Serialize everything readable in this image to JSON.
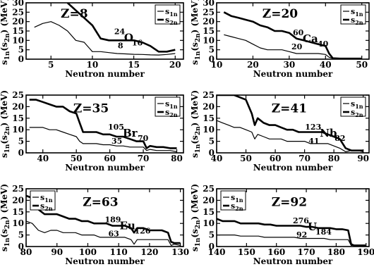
{
  "chart_data": [
    {
      "type": "line",
      "z_label": "Z=8",
      "nucleus": {
        "mass": "24",
        "symbol": "O",
        "z": "8",
        "n": "16"
      },
      "xlabel": "Neutron number",
      "ylabel_parts": [
        "s",
        "1n",
        "(s",
        "2n",
        ") (MeV)"
      ],
      "xlim": [
        2,
        21
      ],
      "ylim": [
        0,
        30
      ],
      "xticks": [
        5,
        10,
        15,
        20
      ],
      "yticks": [
        0,
        5,
        10,
        15,
        20,
        25,
        30
      ],
      "legend": {
        "placement": "top-right",
        "entries": [
          {
            "sub": "1n"
          },
          {
            "sub": "2n"
          }
        ]
      },
      "series": [
        {
          "key": "s1n",
          "x": [
            3,
            4,
            5,
            6,
            7,
            8,
            9,
            10,
            11,
            12,
            13,
            14,
            15,
            16,
            17,
            18,
            19,
            20
          ],
          "y": [
            17,
            19,
            20,
            18,
            15,
            10,
            9,
            4,
            4,
            3.5,
            3,
            2.8,
            2.6,
            2.5,
            2.3,
            2.2,
            2.5,
            3
          ]
        },
        {
          "key": "s2n",
          "x": [
            7,
            8,
            9,
            10,
            11,
            12,
            13,
            14,
            15,
            16,
            17,
            18,
            19,
            20
          ],
          "y": [
            30,
            26,
            22,
            18,
            11,
            10,
            10,
            10,
            10,
            9,
            7,
            4,
            4,
            5
          ]
        }
      ]
    },
    {
      "type": "line",
      "z_label": "Z=20",
      "nucleus": {
        "mass": "60",
        "symbol": "Ca",
        "z": "20",
        "n": "40"
      },
      "xlabel": "Neutron number",
      "ylabel_parts": [
        "s",
        "1n",
        "(s",
        "2n",
        ") (MeV)"
      ],
      "xlim": [
        10,
        52
      ],
      "ylim": [
        0,
        30
      ],
      "xticks": [
        10,
        20,
        30,
        40,
        50
      ],
      "yticks": [
        0,
        5,
        10,
        15,
        20,
        25,
        30
      ],
      "legend": {
        "placement": "top-right",
        "entries": [
          {
            "sub": "1n"
          },
          {
            "sub": "2n"
          }
        ]
      },
      "series": [
        {
          "key": "s1n",
          "x": [
            12,
            14,
            16,
            18,
            20,
            22,
            24,
            26,
            28,
            30,
            32,
            34,
            36,
            38,
            40,
            41,
            42,
            44,
            46,
            48,
            50
          ],
          "y": [
            13,
            12,
            11,
            10,
            8,
            6,
            5,
            5,
            5,
            4,
            3,
            3,
            3,
            3,
            2.5,
            1,
            0.5,
            0.3,
            0.3,
            0.3,
            0.3
          ]
        },
        {
          "key": "s2n",
          "x": [
            12,
            14,
            16,
            18,
            20,
            22,
            24,
            26,
            28,
            30,
            32,
            34,
            36,
            38,
            40,
            41,
            42,
            44,
            46,
            48,
            50
          ],
          "y": [
            25,
            23,
            22,
            21,
            20,
            18,
            17,
            15,
            15,
            14,
            11,
            10,
            9,
            8,
            7,
            3,
            0.5,
            0.3,
            0.3,
            0.3,
            0.3
          ]
        }
      ]
    },
    {
      "type": "line",
      "z_label": "Z=35",
      "nucleus": {
        "mass": "105",
        "symbol": "Br",
        "z": "35",
        "n": "70"
      },
      "xlabel": "Neutron number",
      "ylabel_parts": [
        "s",
        "1n",
        "(s",
        "2n",
        ") (MeV)"
      ],
      "xlim": [
        35,
        82
      ],
      "ylim": [
        0,
        25
      ],
      "xticks": [
        40,
        50,
        60,
        70,
        80
      ],
      "yticks": [
        0,
        5,
        10,
        15,
        20,
        25
      ],
      "legend": {
        "placement": "top-right",
        "entries": [
          {
            "sub": "1n"
          },
          {
            "sub": "2n"
          }
        ]
      },
      "series": [
        {
          "key": "s1n",
          "x": [
            36,
            38,
            40,
            42,
            44,
            46,
            48,
            50,
            51,
            52,
            54,
            56,
            58,
            60,
            62,
            64,
            66,
            68,
            70,
            71,
            72,
            74,
            76,
            78,
            80
          ],
          "y": [
            11,
            11,
            11,
            10,
            10,
            9,
            8,
            7,
            5,
            4,
            4,
            4,
            3.5,
            3.5,
            3,
            3,
            2.5,
            2.5,
            2.5,
            1,
            1.5,
            1,
            1,
            1,
            0.5
          ]
        },
        {
          "key": "s2n",
          "x": [
            36,
            38,
            40,
            42,
            44,
            46,
            48,
            50,
            51,
            52,
            54,
            56,
            58,
            60,
            62,
            64,
            66,
            68,
            70,
            71,
            72,
            74,
            76,
            78,
            80
          ],
          "y": [
            23,
            23,
            22,
            21,
            20,
            20,
            18,
            17,
            13,
            9,
            9,
            9,
            8,
            8,
            7,
            7,
            6,
            5,
            5,
            2,
            3,
            2.5,
            2.5,
            2,
            2
          ]
        }
      ]
    },
    {
      "type": "line",
      "z_label": "Z=41",
      "nucleus": {
        "mass": "123",
        "symbol": "Nb",
        "z": "41",
        "n": "82"
      },
      "xlabel": "Neutron number",
      "ylabel_parts": [
        "s",
        "1n",
        "(s",
        "2n",
        ") (MeV)"
      ],
      "xlim": [
        40,
        92
      ],
      "ylim": [
        0,
        25
      ],
      "xticks": [
        40,
        50,
        60,
        70,
        80,
        90
      ],
      "yticks": [
        0,
        5,
        10,
        15,
        20,
        25
      ],
      "legend": {
        "placement": "top-right",
        "entries": [
          {
            "sub": "1n"
          },
          {
            "sub": "2n"
          }
        ]
      },
      "series": [
        {
          "key": "s1n",
          "x": [
            40,
            42,
            44,
            46,
            48,
            50,
            52,
            53,
            54,
            56,
            58,
            60,
            62,
            64,
            66,
            68,
            70,
            72,
            74,
            76,
            78,
            80,
            82,
            84,
            86,
            88,
            90
          ],
          "y": [
            14,
            13,
            12,
            11,
            11,
            10,
            9,
            6,
            8,
            7,
            6,
            6,
            6,
            5,
            5,
            5,
            5,
            4,
            4,
            4,
            4,
            3,
            2,
            0.5,
            1,
            1,
            0.5
          ]
        },
        {
          "key": "s2n",
          "x": [
            40,
            42,
            44,
            46,
            48,
            50,
            52,
            53,
            54,
            56,
            58,
            60,
            62,
            64,
            66,
            68,
            70,
            72,
            74,
            76,
            78,
            80,
            82,
            84,
            86,
            88,
            90
          ],
          "y": [
            25,
            25,
            25,
            25,
            24,
            23,
            17,
            12,
            15,
            13,
            12,
            12,
            11,
            10,
            10,
            9,
            9,
            9,
            9,
            9,
            8,
            7,
            6,
            2,
            1,
            1,
            1
          ]
        }
      ]
    },
    {
      "type": "line",
      "z_label": "Z=63",
      "nucleus": {
        "mass": "189",
        "symbol": "Eu",
        "z": "63",
        "n": "126"
      },
      "xlabel": "Neutron number",
      "ylabel_parts": [
        "s",
        "1n",
        "(s",
        "2n",
        ") (MeV)"
      ],
      "xlim": [
        80,
        131
      ],
      "ylim": [
        0,
        25
      ],
      "xticks": [
        80,
        90,
        100,
        110,
        120,
        130
      ],
      "yticks": [
        0,
        5,
        10,
        15,
        20,
        25
      ],
      "legend": {
        "placement": "top-left",
        "entries": [
          {
            "sub": "1n"
          },
          {
            "sub": "2n"
          }
        ]
      },
      "series": [
        {
          "key": "s1n",
          "x": [
            80,
            82,
            84,
            86,
            88,
            90,
            92,
            94,
            96,
            98,
            100,
            102,
            104,
            106,
            108,
            110,
            112,
            114,
            115,
            116,
            118,
            120,
            122,
            124,
            126,
            127,
            128,
            130
          ],
          "y": [
            11,
            10,
            7,
            6,
            7,
            7,
            6,
            6,
            6,
            5,
            5,
            5,
            4,
            4,
            4,
            4,
            4,
            3,
            1,
            3,
            3,
            3,
            3,
            3,
            3,
            0.5,
            1,
            0.5
          ]
        },
        {
          "key": "s2n",
          "x": [
            80,
            82,
            84,
            86,
            88,
            90,
            92,
            94,
            96,
            98,
            100,
            102,
            104,
            106,
            108,
            110,
            112,
            114,
            115,
            116,
            118,
            120,
            122,
            124,
            126,
            127,
            128,
            130
          ],
          "y": [
            22,
            21,
            16,
            14,
            14,
            14,
            13,
            12,
            12,
            11,
            11,
            10,
            10,
            10,
            9,
            9,
            9,
            8,
            6,
            8,
            8,
            7,
            7,
            7,
            6,
            2,
            1.5,
            1.5
          ]
        }
      ]
    },
    {
      "type": "line",
      "z_label": "Z=92",
      "nucleus": {
        "mass": "276",
        "symbol": "U",
        "z": "92",
        "n": "184"
      },
      "xlabel": "Neutron number",
      "ylabel_parts": [
        "s",
        "1n",
        "(s",
        "2n",
        ") (MeV)"
      ],
      "xlim": [
        140,
        191
      ],
      "ylim": [
        0,
        25
      ],
      "xticks": [
        140,
        150,
        160,
        170,
        180,
        190
      ],
      "yticks": [
        0,
        5,
        10,
        15,
        20,
        25
      ],
      "legend": {
        "placement": "top-left",
        "entries": [
          {
            "sub": "1n"
          },
          {
            "sub": "2n"
          }
        ]
      },
      "series": [
        {
          "key": "s1n",
          "x": [
            140,
            142,
            144,
            146,
            148,
            150,
            152,
            154,
            156,
            158,
            160,
            162,
            164,
            166,
            168,
            170,
            172,
            174,
            176,
            178,
            180,
            182,
            184,
            185,
            186,
            188,
            190
          ],
          "y": [
            5,
            5,
            5,
            5,
            4.5,
            4.5,
            4.5,
            4.5,
            4,
            4,
            4,
            4,
            4,
            4,
            3.5,
            3.5,
            3.5,
            3.5,
            3.5,
            3,
            3,
            3,
            3,
            0.5,
            0.5,
            0.5,
            0.5
          ]
        },
        {
          "key": "s2n",
          "x": [
            140,
            142,
            144,
            146,
            148,
            150,
            152,
            154,
            156,
            158,
            160,
            162,
            164,
            166,
            168,
            170,
            172,
            174,
            176,
            178,
            180,
            182,
            184,
            185,
            186,
            188,
            190
          ],
          "y": [
            12,
            11,
            11,
            11,
            10,
            10,
            10,
            10,
            9.5,
            9.5,
            9,
            9,
            9,
            9,
            9,
            8.5,
            8.5,
            8,
            8,
            8,
            7.5,
            7.5,
            7,
            1,
            0.5,
            0.5,
            0.5
          ]
        }
      ]
    }
  ]
}
